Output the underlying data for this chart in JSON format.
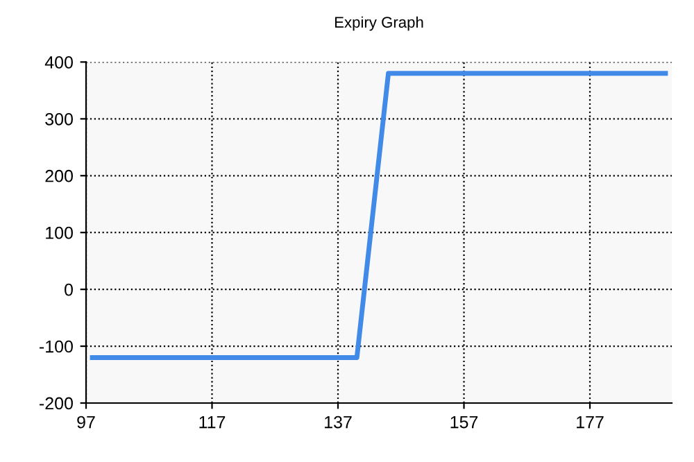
{
  "chart_data": {
    "type": "line",
    "title": "Expiry Graph",
    "x": [
      98,
      140,
      145,
      189
    ],
    "series": [
      {
        "color": "#418ae8",
        "values": [
          -120,
          -120,
          380,
          380
        ]
      }
    ],
    "xlim": [
      97,
      190
    ],
    "xticks": [
      97,
      117,
      137,
      157,
      177
    ],
    "ylim": [
      -200,
      400
    ],
    "yticks": [
      -200,
      -100,
      0,
      100,
      200,
      300,
      400
    ],
    "grid": true,
    "legend": false,
    "marker": "none",
    "line_style": "solid"
  }
}
